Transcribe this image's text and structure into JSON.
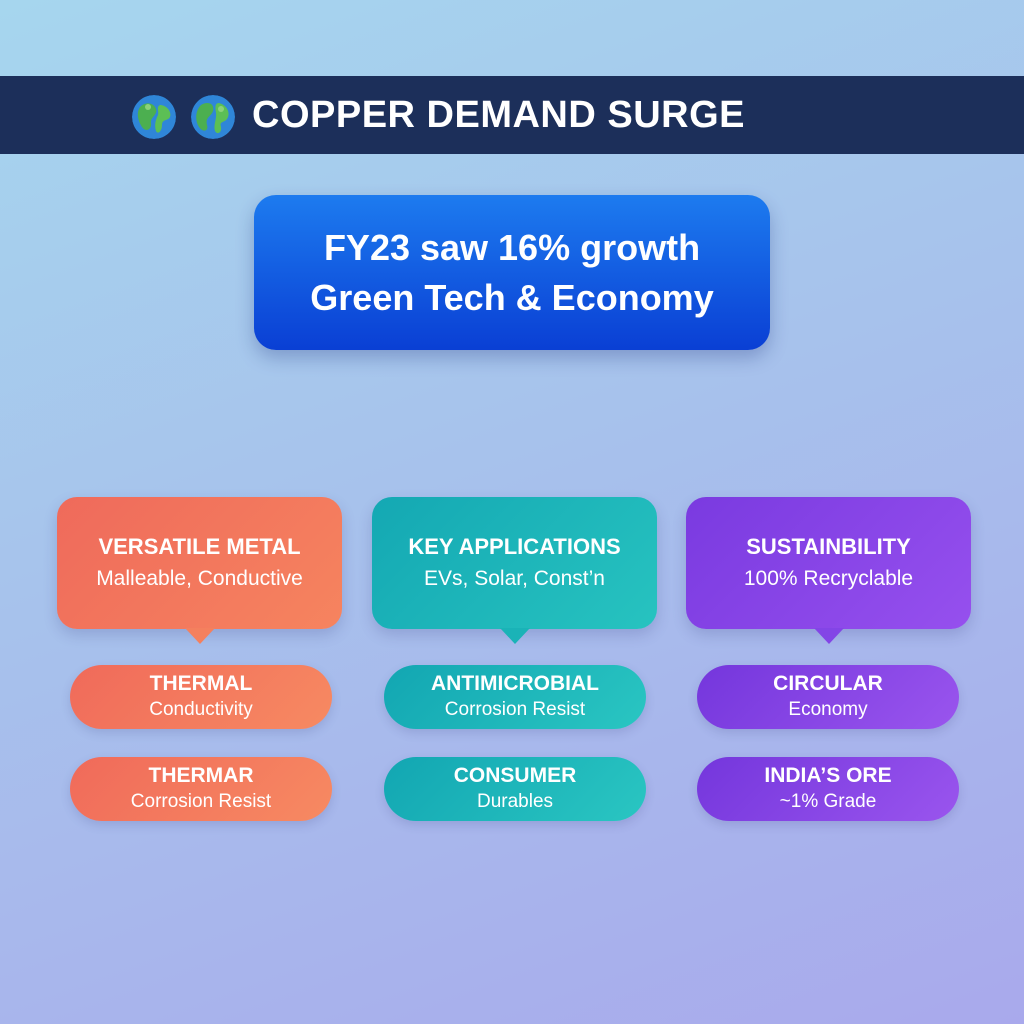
{
  "header": {
    "title": "COPPER DEMAND SURGE",
    "icons": [
      "globe-icon",
      "globe-icon"
    ]
  },
  "headline": {
    "line1": "FY23 saw 16% growth",
    "line2": "Green Tech & Economy"
  },
  "columns": [
    {
      "title": "VERSATILE METAL",
      "subtitle": "Malleable, Conductive",
      "color": "#f4805e",
      "items": [
        {
          "title": "THERMAL",
          "subtitle": "Conductivity"
        },
        {
          "title": "THERMAR",
          "subtitle": "Corrosion Resist"
        }
      ]
    },
    {
      "title": "KEY APPLICATIONS",
      "subtitle": "EVs, Solar, Const’n",
      "color": "#1ab3b7",
      "items": [
        {
          "title": "ANTIMICROBIAL",
          "subtitle": "Corrosion Resist"
        },
        {
          "title": "CONSUMER",
          "subtitle": "Durables"
        }
      ]
    },
    {
      "title": "SUSTAINBILITY",
      "subtitle": "100% Recryclable",
      "color": "#8345e6",
      "items": [
        {
          "title": "CIRCULAR",
          "subtitle": "Economy"
        },
        {
          "title": "INDIA’S ORE",
          "subtitle": "~1% Grade"
        }
      ]
    }
  ],
  "colors": {
    "header_bg": "#1c2f5a",
    "headline_bg": "#0a3fd4",
    "orange": "#f4805e",
    "teal": "#1ab3b7",
    "purple": "#8345e6"
  }
}
